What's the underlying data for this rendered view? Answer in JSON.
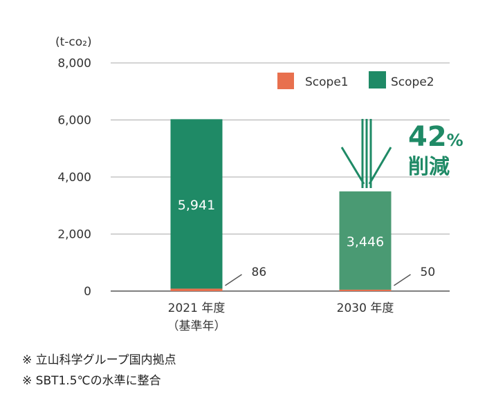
{
  "chart_data": {
    "type": "bar",
    "stacked": true,
    "unit_label": "(t-co₂)",
    "categories": [
      "2021 年度",
      "2030 年度"
    ],
    "category_sublabels": [
      "（基準年）",
      ""
    ],
    "series": [
      {
        "name": "Scope1",
        "values": [
          86,
          50
        ],
        "color": "#e8704e"
      },
      {
        "name": "Scope2",
        "values": [
          5941,
          3446
        ],
        "colors": [
          "#1f8a66",
          "#4a9a73"
        ]
      }
    ],
    "ylim": [
      0,
      8000
    ],
    "yticks": [
      "0",
      "2,000",
      "4,000",
      "6,000",
      "8,000"
    ],
    "ytick_values": [
      0,
      2000,
      4000,
      6000,
      8000
    ],
    "data_labels": {
      "scope2": [
        "5,941",
        "3,446"
      ],
      "scope1": [
        "86",
        "50"
      ]
    },
    "grid": true,
    "legend_position": "top-right",
    "annotation": {
      "value": "42",
      "unit": "%",
      "text": "削減",
      "color": "#1f8a66"
    }
  },
  "notes": [
    "※ 立山科学グループ国内拠点",
    "※ SBT1.5℃の水準に整合"
  ]
}
